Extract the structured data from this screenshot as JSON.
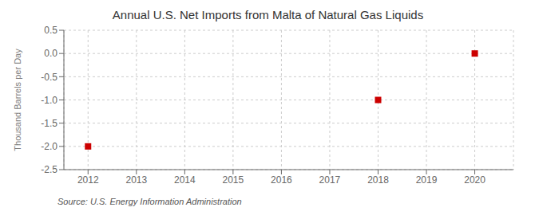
{
  "chart_data": {
    "type": "scatter",
    "title": "Annual U.S. Net Imports from Malta of Natural Gas Liquids",
    "ylabel": "Thousand Barrels per Day",
    "annotations": [
      "Source: U.S. Energy Information Administration"
    ],
    "x": [
      2012,
      2018,
      2020
    ],
    "values": [
      -2.0,
      -1.0,
      0.0
    ],
    "color": "#cc0000",
    "marker": "square",
    "xlim": [
      2011.5,
      2020.8
    ],
    "ylim": [
      -2.5,
      0.5
    ],
    "xticks": [
      2012,
      2013,
      2014,
      2015,
      2016,
      2017,
      2018,
      2019,
      2020
    ],
    "yticks": [
      0.5,
      {
        "value": 0,
        "label": "0.0"
      },
      -0.5,
      {
        "value": -1,
        "label": "-1.0"
      },
      -1.5,
      {
        "value": -2,
        "label": "-2.0"
      },
      -2.5
    ],
    "grid": true
  }
}
